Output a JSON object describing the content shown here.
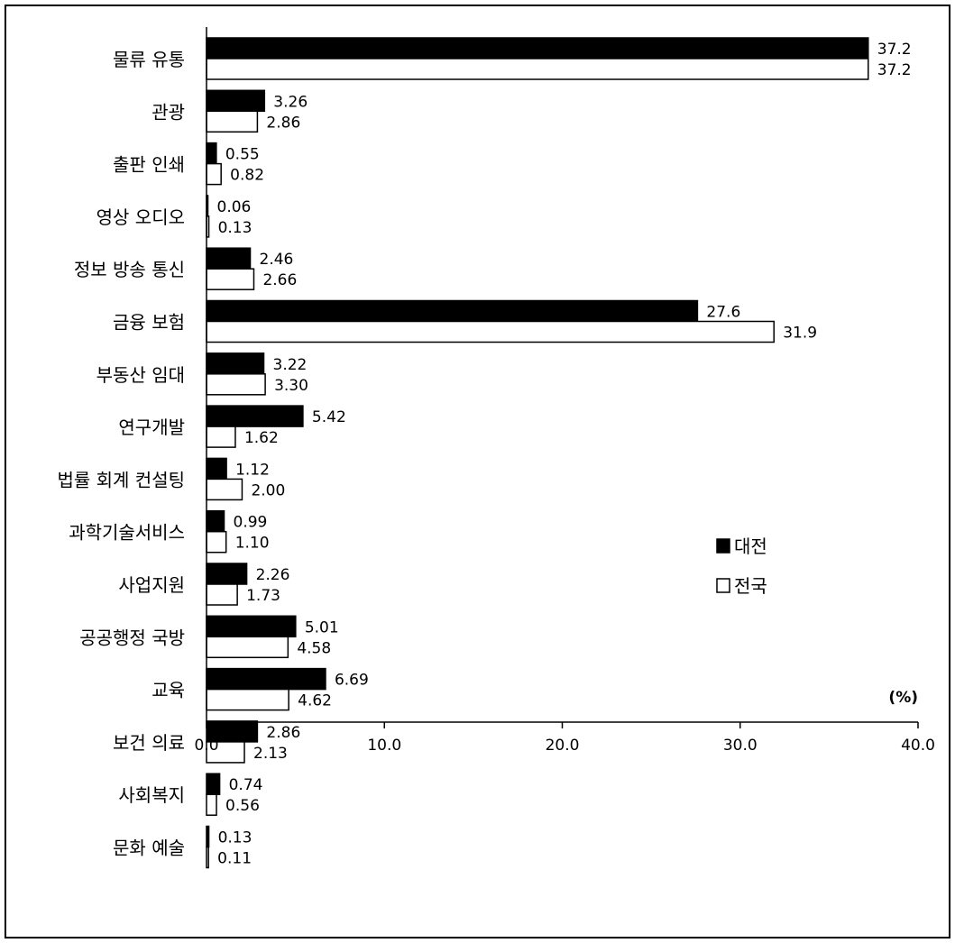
{
  "chart_data": {
    "type": "bar",
    "orientation": "horizontal",
    "unit_label": "(%)",
    "xlim": [
      0,
      40
    ],
    "xticks": [
      "0.0",
      "10.0",
      "20.0",
      "30.0",
      "40.0"
    ],
    "grid": false,
    "legend_position": "right",
    "categories": [
      "물류 유통",
      "관광",
      "출판 인쇄",
      "영상 오디오",
      "정보 방송 통신",
      "금융 보험",
      "부동산 임대",
      "연구개발",
      "법률 회계 컨설팅",
      "과학기술서비스",
      "사업지원",
      "공공행정 국방",
      "교육",
      "보건 의료",
      "사회복지",
      "문화 예술"
    ],
    "series": [
      {
        "name": "대전",
        "color": "#000000",
        "values": [
          37.2,
          3.26,
          0.55,
          0.06,
          2.46,
          27.6,
          3.22,
          5.42,
          1.12,
          0.99,
          2.26,
          5.01,
          6.69,
          2.86,
          0.74,
          0.13
        ],
        "labels": [
          "37.2",
          "3.26",
          "0.55",
          "0.06",
          "2.46",
          "27.6",
          "3.22",
          "5.42",
          "1.12",
          "0.99",
          "2.26",
          "5.01",
          "6.69",
          "2.86",
          "0.74",
          "0.13"
        ]
      },
      {
        "name": "전국",
        "color": "#ffffff",
        "values": [
          37.2,
          2.86,
          0.82,
          0.13,
          2.66,
          31.9,
          3.3,
          1.62,
          2.0,
          1.1,
          1.73,
          4.58,
          4.62,
          2.13,
          0.56,
          0.11
        ],
        "labels": [
          "37.2",
          "2.86",
          "0.82",
          "0.13",
          "2.66",
          "31.9",
          "3.30",
          "1.62",
          "2.00",
          "1.10",
          "1.73",
          "4.58",
          "4.62",
          "2.13",
          "0.56",
          "0.11"
        ]
      }
    ]
  }
}
